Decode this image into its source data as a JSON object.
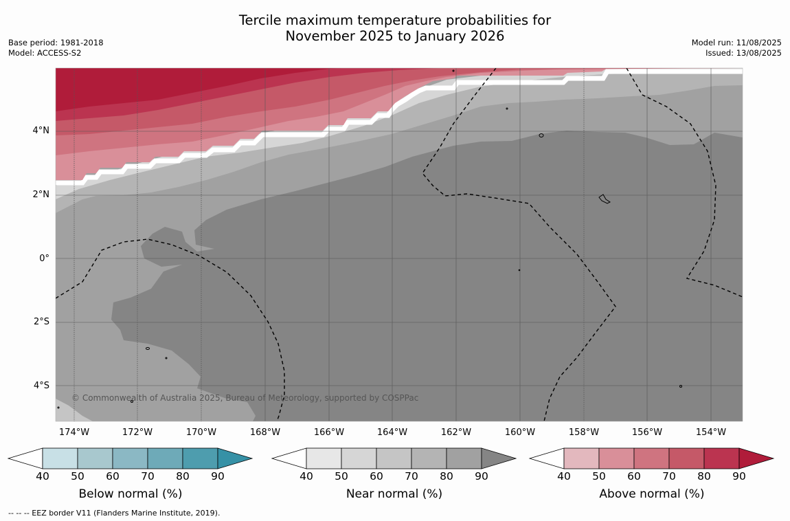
{
  "title": {
    "line1": "Tercile maximum temperature probabilities for",
    "line2": "November 2025 to January 2026"
  },
  "meta": {
    "base_period": "Base period: 1981-2018",
    "model": "Model: ACCESS-S2",
    "model_run": "Model run: 11/08/2025",
    "issued": "Issued: 13/08/2025"
  },
  "axes": {
    "lat_labels": [
      "4°N",
      "2°N",
      "0°",
      "2°S",
      "4°S"
    ],
    "lon_labels": [
      "174°W",
      "172°W",
      "170°W",
      "168°W",
      "166°W",
      "164°W",
      "162°W",
      "160°W",
      "158°W",
      "156°W",
      "154°W"
    ]
  },
  "copyright": "© Commonwealth of Australia 2025, Bureau of Meteorology, supported by COSPPac",
  "colorbars": [
    {
      "title": "Below normal (%)",
      "ticks": [
        "40",
        "50",
        "60",
        "70",
        "80",
        "90"
      ],
      "colors": [
        "#ffffff",
        "#c8e0e6",
        "#a8c8ce",
        "#8bb8c4",
        "#6eaab8",
        "#4e9dae",
        "#3691a6"
      ]
    },
    {
      "title": "Near normal (%)",
      "ticks": [
        "40",
        "50",
        "60",
        "70",
        "80",
        "90"
      ],
      "colors": [
        "#ffffff",
        "#e7e7e7",
        "#d6d6d6",
        "#c5c5c5",
        "#b4b4b4",
        "#a1a1a1",
        "#858585"
      ]
    },
    {
      "title": "Above normal (%)",
      "ticks": [
        "40",
        "50",
        "60",
        "70",
        "80",
        "90"
      ],
      "colors": [
        "#ffffff",
        "#e3b8be",
        "#d98f99",
        "#cf7480",
        "#c55968",
        "#bb3450",
        "#b01c3a"
      ]
    }
  ],
  "footnote": "--  --  -- EEZ border V11 (Flanders Marine Institute, 2019)."
}
